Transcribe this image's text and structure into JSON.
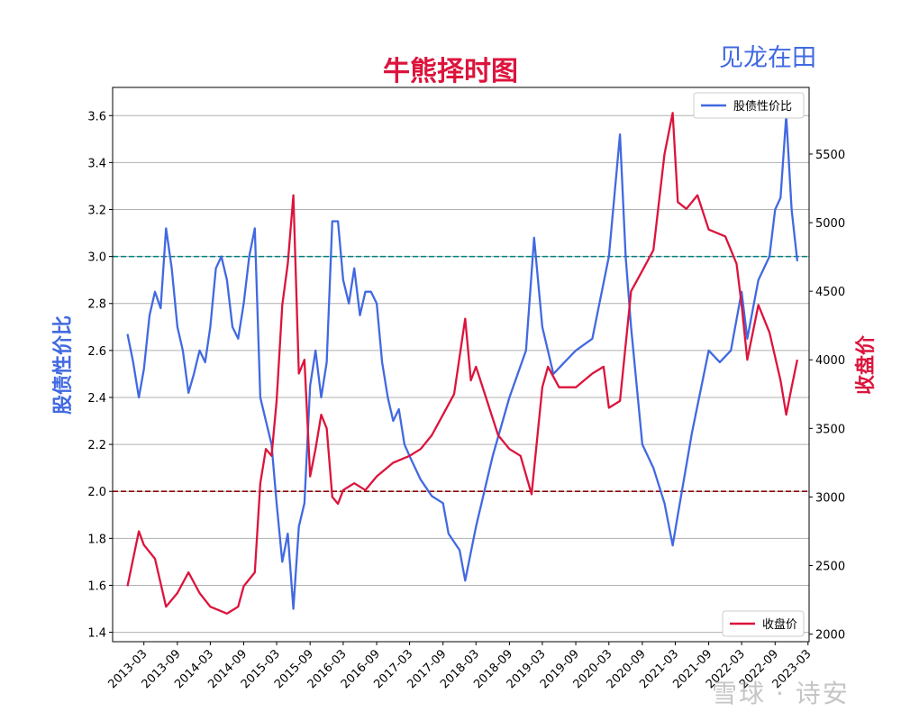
{
  "chart_data": {
    "type": "line",
    "title": "牛熊择时图",
    "subtitle": "见龙在田",
    "watermark": "雪球 · 诗安",
    "grid": true,
    "xlim": [
      "2012-09-10",
      "2023-03-07"
    ],
    "xticks": [
      "2013-03",
      "2013-09",
      "2014-03",
      "2014-09",
      "2015-03",
      "2015-09",
      "2016-03",
      "2016-09",
      "2017-03",
      "2017-09",
      "2018-03",
      "2018-09",
      "2019-03",
      "2019-09",
      "2020-03",
      "2020-09",
      "2021-03",
      "2021-09",
      "2022-03",
      "2022-09",
      "2023-03"
    ],
    "left_axis": {
      "label": "股债性价比",
      "ylim": [
        1.36,
        3.72
      ],
      "ticks": [
        "1.4",
        "1.6",
        "1.8",
        "2.0",
        "2.2",
        "2.4",
        "2.6",
        "2.8",
        "3.0",
        "3.2",
        "3.4",
        "3.6"
      ],
      "color": "#4169e1"
    },
    "right_axis": {
      "label": "收盘价",
      "ylim": [
        1945,
        5986
      ],
      "ticks": [
        "2000",
        "2500",
        "3000",
        "3500",
        "4000",
        "4500",
        "5000",
        "5500"
      ],
      "color": "#dc143c"
    },
    "reference_lines": [
      {
        "axis": "left",
        "y": 3.0,
        "color": "#008080",
        "style": "dashed"
      },
      {
        "axis": "left",
        "y": 2.0,
        "color": "#8b0000",
        "style": "dashed"
      }
    ],
    "series": [
      {
        "name": "股债性价比",
        "axis": "left",
        "color": "#4169e1",
        "legend": "upper right",
        "points": [
          [
            "2012-12-01",
            2.67
          ],
          [
            "2013-01-01",
            2.55
          ],
          [
            "2013-02-01",
            2.4
          ],
          [
            "2013-03-01",
            2.52
          ],
          [
            "2013-04-01",
            2.75
          ],
          [
            "2013-05-01",
            2.85
          ],
          [
            "2013-06-01",
            2.78
          ],
          [
            "2013-07-01",
            3.12
          ],
          [
            "2013-08-01",
            2.95
          ],
          [
            "2013-09-01",
            2.7
          ],
          [
            "2013-10-01",
            2.6
          ],
          [
            "2013-11-01",
            2.42
          ],
          [
            "2013-12-01",
            2.5
          ],
          [
            "2014-01-01",
            2.6
          ],
          [
            "2014-02-01",
            2.55
          ],
          [
            "2014-03-01",
            2.7
          ],
          [
            "2014-04-01",
            2.95
          ],
          [
            "2014-05-01",
            3.0
          ],
          [
            "2014-06-01",
            2.9
          ],
          [
            "2014-07-01",
            2.7
          ],
          [
            "2014-08-01",
            2.65
          ],
          [
            "2014-09-01",
            2.8
          ],
          [
            "2014-10-01",
            3.0
          ],
          [
            "2014-11-01",
            3.12
          ],
          [
            "2014-12-01",
            2.4
          ],
          [
            "2015-01-01",
            2.3
          ],
          [
            "2015-02-01",
            2.2
          ],
          [
            "2015-03-01",
            1.95
          ],
          [
            "2015-04-01",
            1.7
          ],
          [
            "2015-05-01",
            1.82
          ],
          [
            "2015-06-01",
            1.5
          ],
          [
            "2015-07-01",
            1.85
          ],
          [
            "2015-08-01",
            1.95
          ],
          [
            "2015-09-01",
            2.45
          ],
          [
            "2015-10-01",
            2.6
          ],
          [
            "2015-11-01",
            2.4
          ],
          [
            "2015-12-01",
            2.55
          ],
          [
            "2016-01-01",
            3.15
          ],
          [
            "2016-02-01",
            3.15
          ],
          [
            "2016-03-01",
            2.9
          ],
          [
            "2016-04-01",
            2.8
          ],
          [
            "2016-05-01",
            2.95
          ],
          [
            "2016-06-01",
            2.75
          ],
          [
            "2016-07-01",
            2.85
          ],
          [
            "2016-08-01",
            2.85
          ],
          [
            "2016-09-01",
            2.8
          ],
          [
            "2016-10-01",
            2.55
          ],
          [
            "2016-11-01",
            2.4
          ],
          [
            "2016-12-01",
            2.3
          ],
          [
            "2017-01-01",
            2.35
          ],
          [
            "2017-02-01",
            2.2
          ],
          [
            "2017-03-01",
            2.15
          ],
          [
            "2017-05-01",
            2.05
          ],
          [
            "2017-07-01",
            1.98
          ],
          [
            "2017-09-01",
            1.95
          ],
          [
            "2017-10-01",
            1.82
          ],
          [
            "2017-12-01",
            1.75
          ],
          [
            "2018-01-01",
            1.62
          ],
          [
            "2018-03-01",
            1.85
          ],
          [
            "2018-06-01",
            2.15
          ],
          [
            "2018-09-01",
            2.4
          ],
          [
            "2018-12-01",
            2.6
          ],
          [
            "2019-01-15",
            3.08
          ],
          [
            "2019-03-01",
            2.7
          ],
          [
            "2019-05-01",
            2.5
          ],
          [
            "2019-07-01",
            2.55
          ],
          [
            "2019-09-01",
            2.6
          ],
          [
            "2019-12-01",
            2.65
          ],
          [
            "2020-03-01",
            3.0
          ],
          [
            "2020-05-01",
            3.52
          ],
          [
            "2020-06-01",
            3.0
          ],
          [
            "2020-07-01",
            2.7
          ],
          [
            "2020-09-01",
            2.2
          ],
          [
            "2020-11-01",
            2.1
          ],
          [
            "2021-01-01",
            1.95
          ],
          [
            "2021-02-15",
            1.77
          ],
          [
            "2021-03-15",
            1.9
          ],
          [
            "2021-06-01",
            2.25
          ],
          [
            "2021-09-01",
            2.6
          ],
          [
            "2021-11-01",
            2.55
          ],
          [
            "2022-01-01",
            2.6
          ],
          [
            "2022-03-01",
            2.85
          ],
          [
            "2022-04-01",
            2.65
          ],
          [
            "2022-06-01",
            2.9
          ],
          [
            "2022-08-01",
            3.0
          ],
          [
            "2022-09-01",
            3.2
          ],
          [
            "2022-10-01",
            3.25
          ],
          [
            "2022-11-01",
            3.6
          ],
          [
            "2022-12-01",
            3.2
          ],
          [
            "2023-01-01",
            2.98
          ]
        ]
      },
      {
        "name": "收盘价",
        "axis": "right",
        "color": "#dc143c",
        "legend": "lower right",
        "points": [
          [
            "2012-12-01",
            2350
          ],
          [
            "2013-02-01",
            2750
          ],
          [
            "2013-03-01",
            2650
          ],
          [
            "2013-05-01",
            2550
          ],
          [
            "2013-07-01",
            2200
          ],
          [
            "2013-09-01",
            2300
          ],
          [
            "2013-11-01",
            2450
          ],
          [
            "2014-01-01",
            2300
          ],
          [
            "2014-03-01",
            2200
          ],
          [
            "2014-06-01",
            2150
          ],
          [
            "2014-08-01",
            2200
          ],
          [
            "2014-09-01",
            2350
          ],
          [
            "2014-11-01",
            2450
          ],
          [
            "2014-12-01",
            3100
          ],
          [
            "2015-01-01",
            3350
          ],
          [
            "2015-02-01",
            3300
          ],
          [
            "2015-03-01",
            3700
          ],
          [
            "2015-04-01",
            4400
          ],
          [
            "2015-05-01",
            4700
          ],
          [
            "2015-06-01",
            5200
          ],
          [
            "2015-07-01",
            3900
          ],
          [
            "2015-08-01",
            4000
          ],
          [
            "2015-09-01",
            3150
          ],
          [
            "2015-10-01",
            3350
          ],
          [
            "2015-11-01",
            3600
          ],
          [
            "2015-12-01",
            3500
          ],
          [
            "2016-01-01",
            3000
          ],
          [
            "2016-02-01",
            2950
          ],
          [
            "2016-03-01",
            3050
          ],
          [
            "2016-05-01",
            3100
          ],
          [
            "2016-07-01",
            3050
          ],
          [
            "2016-09-01",
            3150
          ],
          [
            "2016-12-01",
            3250
          ],
          [
            "2017-03-01",
            3300
          ],
          [
            "2017-05-01",
            3350
          ],
          [
            "2017-07-01",
            3450
          ],
          [
            "2017-09-01",
            3600
          ],
          [
            "2017-11-01",
            3750
          ],
          [
            "2018-01-01",
            4300
          ],
          [
            "2018-02-01",
            3850
          ],
          [
            "2018-03-01",
            3950
          ],
          [
            "2018-05-01",
            3700
          ],
          [
            "2018-07-01",
            3450
          ],
          [
            "2018-09-01",
            3350
          ],
          [
            "2018-11-01",
            3300
          ],
          [
            "2019-01-01",
            3020
          ],
          [
            "2019-03-01",
            3800
          ],
          [
            "2019-04-01",
            3950
          ],
          [
            "2019-06-01",
            3800
          ],
          [
            "2019-09-01",
            3800
          ],
          [
            "2019-12-01",
            3900
          ],
          [
            "2020-02-01",
            3950
          ],
          [
            "2020-03-01",
            3650
          ],
          [
            "2020-05-01",
            3700
          ],
          [
            "2020-07-01",
            4500
          ],
          [
            "2020-09-01",
            4650
          ],
          [
            "2020-11-01",
            4800
          ],
          [
            "2021-01-01",
            5500
          ],
          [
            "2021-02-15",
            5800
          ],
          [
            "2021-03-15",
            5150
          ],
          [
            "2021-05-01",
            5100
          ],
          [
            "2021-07-01",
            5200
          ],
          [
            "2021-09-01",
            4950
          ],
          [
            "2021-12-01",
            4900
          ],
          [
            "2022-02-01",
            4700
          ],
          [
            "2022-03-01",
            4400
          ],
          [
            "2022-04-01",
            4000
          ],
          [
            "2022-06-01",
            4400
          ],
          [
            "2022-08-01",
            4200
          ],
          [
            "2022-10-01",
            3850
          ],
          [
            "2022-11-01",
            3600
          ],
          [
            "2022-12-01",
            3800
          ],
          [
            "2023-01-01",
            4000
          ]
        ]
      }
    ]
  }
}
